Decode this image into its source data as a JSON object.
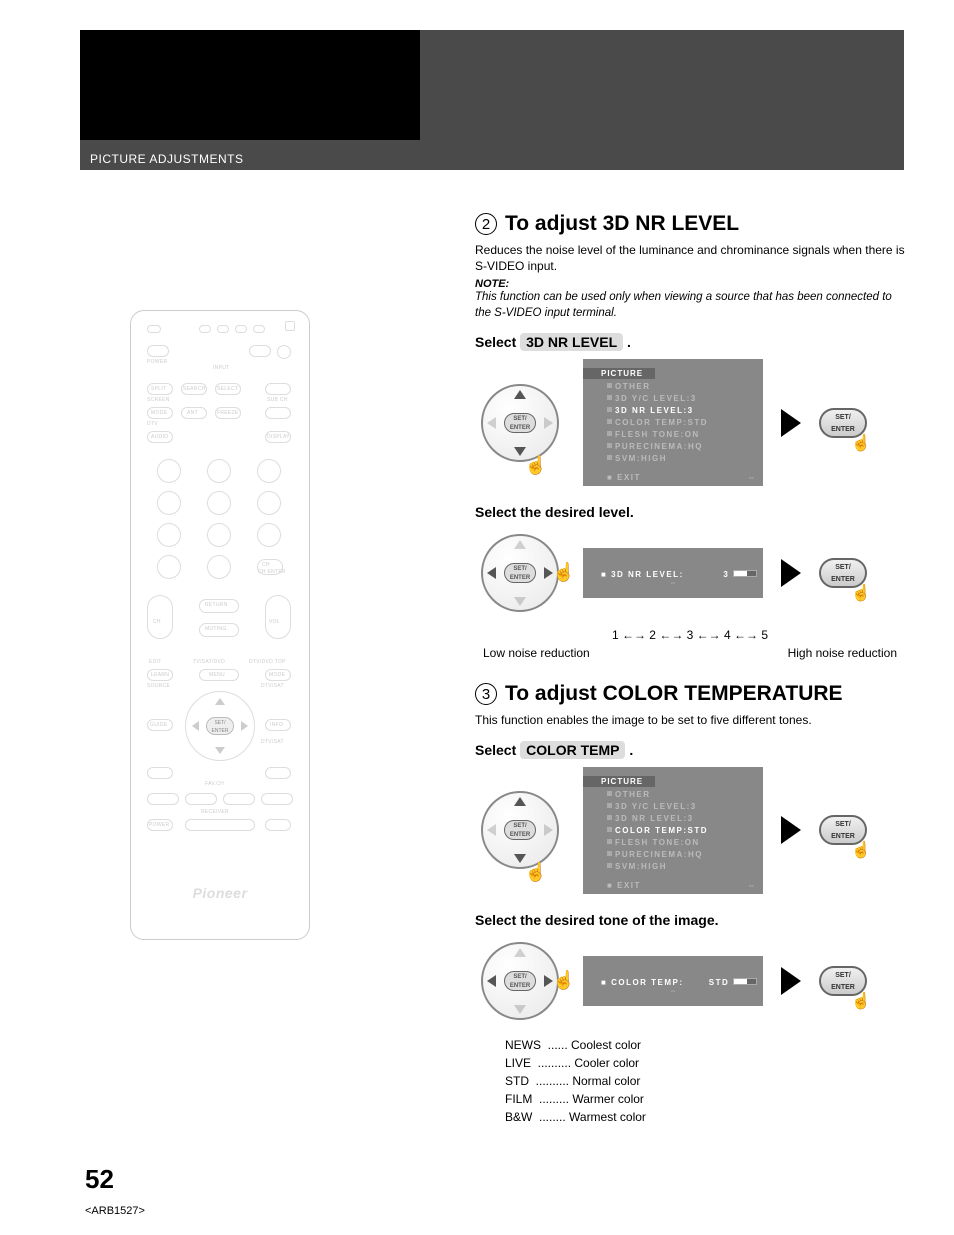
{
  "header": {
    "section": "PICTURE ADJUSTMENTS"
  },
  "page_num": "52",
  "doc_id": "<ARB1527>",
  "remote": {
    "brand": "Pioneer",
    "labels": {
      "power": "POWER",
      "input": "INPUT",
      "split": "SPLIT",
      "search": "SEARCH",
      "select": "SELECT",
      "screen": "SCREEN",
      "subch": "SUB CH",
      "mode": "MODE",
      "ant": "ANT",
      "freeze": "FREEZE",
      "dtv": "DTV",
      "audio": "AUDIO",
      "display": "DISPLAY",
      "ch": "CH",
      "chenter": "CH ENTER",
      "return": "RETURN",
      "muting": "MUTING",
      "vol": "VOL",
      "edit": "EDIT",
      "tvsatdvd": "TV/SAT/DVD",
      "dtvdvdtop": "DTV/DVD TOP",
      "learn": "LEARN",
      "menu": "MENU",
      "mode2": "MODE",
      "source": "SOURCE",
      "dtvsat": "DTV/SAT",
      "guide": "GUIDE",
      "info": "INFO",
      "dtvsat2": "DTV/SAT",
      "favch": "FAV.CH",
      "receiver": "RECEIVER",
      "setenter": "SET/\nENTER",
      "power2": "POWER"
    }
  },
  "step2": {
    "num": "2",
    "title": "To adjust 3D NR LEVEL",
    "desc": "Reduces the noise level of the luminance and chrominance signals when there is S-VIDEO input.",
    "note_label": "NOTE:",
    "note": "This function can be used only when viewing a source that has been connected to the S-VIDEO input terminal.",
    "select_label": "Select",
    "select_pill": "3D NR LEVEL",
    "period1": ".",
    "osd1": {
      "title": "PICTURE",
      "lines": [
        {
          "t": "OTHER",
          "hl": false
        },
        {
          "t": "3D Y/C LEVEL:3",
          "hl": false
        },
        {
          "t": "3D NR LEVEL:3",
          "hl": true
        },
        {
          "t": "COLOR TEMP:STD",
          "hl": false
        },
        {
          "t": "FLESH TONE:ON",
          "hl": false
        },
        {
          "t": "PURECINEMA:HQ",
          "hl": false
        },
        {
          "t": "SVM:HIGH",
          "hl": false
        }
      ],
      "exit": "EXIT"
    },
    "sub2": "Select the desired level.",
    "osd2": {
      "label": "3D NR LEVEL:",
      "value": "3"
    },
    "scale": "1 ←→ 2 ←→ 3 ←→ 4 ←→ 5",
    "scale_low": "Low noise reduction",
    "scale_high": "High noise reduction",
    "enter": "SET/\nENTER",
    "nav_center": "SET/\nENTER"
  },
  "step3": {
    "num": "3",
    "title": "To adjust COLOR TEMPERATURE",
    "desc": "This function enables the image to be set to five different tones.",
    "select_label": "Select",
    "select_pill": "COLOR TEMP",
    "period1": ".",
    "osd1": {
      "title": "PICTURE",
      "lines": [
        {
          "t": "OTHER",
          "hl": false
        },
        {
          "t": "3D Y/C LEVEL:3",
          "hl": false
        },
        {
          "t": "3D NR LEVEL:3",
          "hl": false
        },
        {
          "t": "COLOR TEMP:STD",
          "hl": true
        },
        {
          "t": "FLESH TONE:ON",
          "hl": false
        },
        {
          "t": "PURECINEMA:HQ",
          "hl": false
        },
        {
          "t": "SVM:HIGH",
          "hl": false
        }
      ],
      "exit": "EXIT"
    },
    "sub2": "Select the desired tone of the image.",
    "osd2": {
      "label": "COLOR TEMP:",
      "value": "STD"
    },
    "tones": [
      {
        "k": "NEWS",
        "dots": "......",
        "v": "Coolest color"
      },
      {
        "k": "LIVE",
        "dots": "..........",
        "v": "Cooler color"
      },
      {
        "k": "STD",
        "dots": "..........",
        "v": "Normal color"
      },
      {
        "k": "FILM",
        "dots": ".........",
        "v": "Warmer color"
      },
      {
        "k": "B&W",
        "dots": "........",
        "v": "Warmest color"
      }
    ],
    "enter": "SET/\nENTER",
    "nav_center": "SET/\nENTER"
  }
}
